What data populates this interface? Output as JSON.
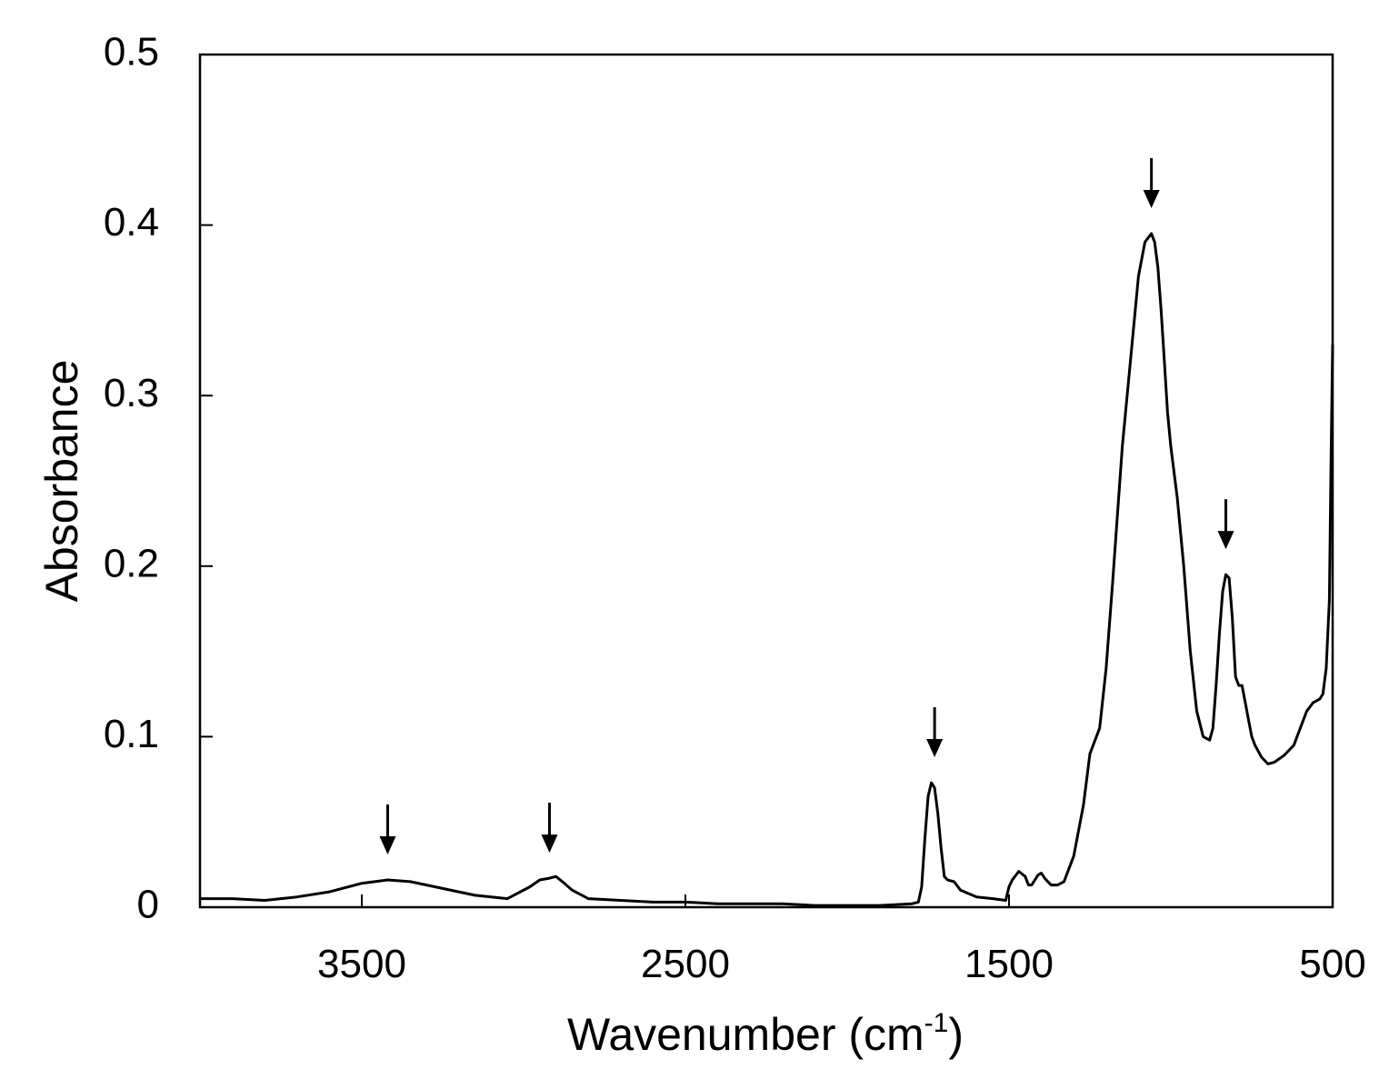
{
  "chart_data": {
    "type": "line",
    "title": "",
    "xlabel": "Wavenumber (cm",
    "xlabel_superscript": "-1",
    "xlabel_suffix": ")",
    "ylabel": "Absorbance",
    "xlim": [
      4000,
      500
    ],
    "ylim": [
      0,
      0.5
    ],
    "x_reversed": true,
    "grid": false,
    "legend": "none",
    "x_ticks": [
      3500,
      2500,
      1500,
      500
    ],
    "x_tick_labels": [
      "3500",
      "2500",
      "1500",
      "500"
    ],
    "y_ticks": [
      0,
      0.1,
      0.2,
      0.3,
      0.4,
      0.5
    ],
    "y_tick_labels": [
      "0",
      "0.1",
      "0.2",
      "0.3",
      "0.4",
      "0.5"
    ],
    "line_color": "#000000",
    "series": [
      {
        "x": [
          4000,
          3900,
          3800,
          3700,
          3600,
          3500,
          3420,
          3350,
          3250,
          3150,
          3050,
          2980,
          2950,
          2920,
          2900,
          2880,
          2850,
          2800,
          2700,
          2600,
          2500,
          2400,
          2300,
          2200,
          2100,
          2000,
          1900,
          1800,
          1780,
          1770,
          1760,
          1750,
          1740,
          1730,
          1720,
          1710,
          1700,
          1690,
          1670,
          1650,
          1600,
          1550,
          1510,
          1500,
          1490,
          1470,
          1450,
          1440,
          1430,
          1420,
          1410,
          1400,
          1390,
          1380,
          1370,
          1350,
          1330,
          1300,
          1270,
          1250,
          1220,
          1200,
          1180,
          1150,
          1120,
          1100,
          1080,
          1060,
          1050,
          1040,
          1030,
          1020,
          1010,
          1000,
          980,
          960,
          940,
          920,
          900,
          880,
          870,
          860,
          850,
          840,
          830,
          820,
          810,
          800,
          790,
          780,
          770,
          760,
          750,
          740,
          720,
          700,
          680,
          650,
          620,
          600,
          580,
          560,
          540,
          530,
          520,
          510,
          505,
          500
        ],
        "y": [
          0.005,
          0.005,
          0.004,
          0.006,
          0.009,
          0.014,
          0.016,
          0.015,
          0.011,
          0.007,
          0.005,
          0.012,
          0.016,
          0.017,
          0.018,
          0.015,
          0.01,
          0.005,
          0.004,
          0.003,
          0.003,
          0.002,
          0.002,
          0.002,
          0.001,
          0.001,
          0.001,
          0.002,
          0.003,
          0.012,
          0.04,
          0.065,
          0.073,
          0.07,
          0.055,
          0.035,
          0.018,
          0.016,
          0.015,
          0.01,
          0.006,
          0.005,
          0.004,
          0.012,
          0.016,
          0.021,
          0.018,
          0.013,
          0.013,
          0.016,
          0.019,
          0.02,
          0.017,
          0.015,
          0.013,
          0.013,
          0.015,
          0.03,
          0.06,
          0.09,
          0.105,
          0.14,
          0.19,
          0.27,
          0.33,
          0.37,
          0.39,
          0.395,
          0.39,
          0.375,
          0.35,
          0.32,
          0.29,
          0.27,
          0.24,
          0.2,
          0.15,
          0.115,
          0.1,
          0.098,
          0.105,
          0.13,
          0.16,
          0.185,
          0.195,
          0.193,
          0.17,
          0.135,
          0.13,
          0.13,
          0.12,
          0.11,
          0.1,
          0.095,
          0.088,
          0.084,
          0.085,
          0.089,
          0.095,
          0.105,
          0.115,
          0.12,
          0.122,
          0.125,
          0.14,
          0.18,
          0.26,
          0.33
        ]
      }
    ],
    "annotations": [
      {
        "type": "arrow-down",
        "x": 3420,
        "y": 0.016
      },
      {
        "type": "arrow-down",
        "x": 2920,
        "y": 0.017
      },
      {
        "type": "arrow-down",
        "x": 1730,
        "y": 0.073
      },
      {
        "type": "arrow-down",
        "x": 1060,
        "y": 0.395
      },
      {
        "type": "arrow-down",
        "x": 830,
        "y": 0.195
      }
    ]
  }
}
